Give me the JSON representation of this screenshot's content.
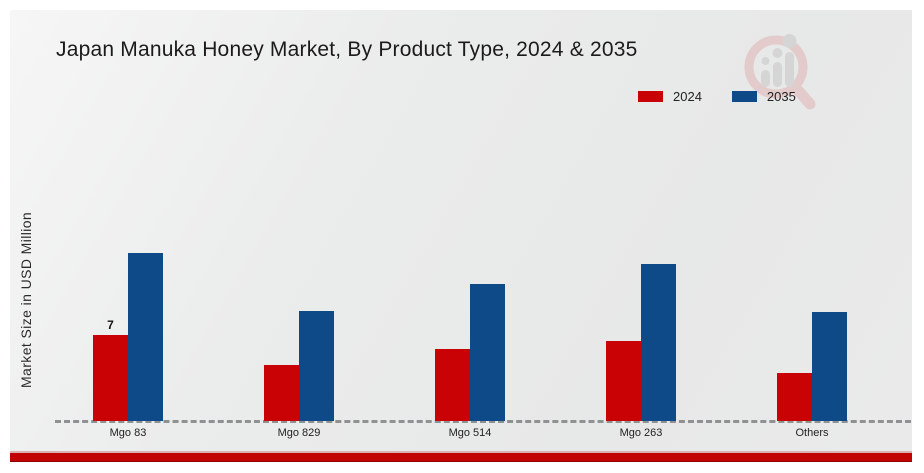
{
  "header": {
    "title": "Japan Manuka Honey Market, By Product Type, 2024 & 2035"
  },
  "y_axis": {
    "label": "Market Size in USD Million"
  },
  "legend": {
    "items": [
      {
        "label": "2024",
        "color": "#c90305"
      },
      {
        "label": "2035",
        "color": "#0e4a87"
      }
    ]
  },
  "chart_data": {
    "type": "bar",
    "title": "Japan Manuka Honey Market, By Product Type, 2024 & 2035",
    "categories": [
      "Mgo 83",
      "Mgo 829",
      "Mgo 514",
      "Mgo 263",
      "Others"
    ],
    "series": [
      {
        "name": "2024",
        "color": "#c90305",
        "values": [
          7,
          4.6,
          5.9,
          6.5,
          3.9
        ]
      },
      {
        "name": "2035",
        "color": "#0e4a87",
        "values": [
          13.7,
          9.0,
          11.2,
          12.8,
          8.9
        ]
      }
    ],
    "data_labels": [
      {
        "series_index": 0,
        "category_index": 0,
        "text": "7"
      }
    ],
    "xlabel": "",
    "ylabel": "Market Size in USD Million",
    "ylim": [
      0,
      14
    ],
    "grid": false,
    "legend_position": "top-right",
    "baseline_style": "dashed",
    "y_ticks_visible": false
  },
  "watermark": {
    "icon": "magnifier-bar-chart-logo"
  },
  "footer": {
    "accent_color": "#c10303"
  }
}
